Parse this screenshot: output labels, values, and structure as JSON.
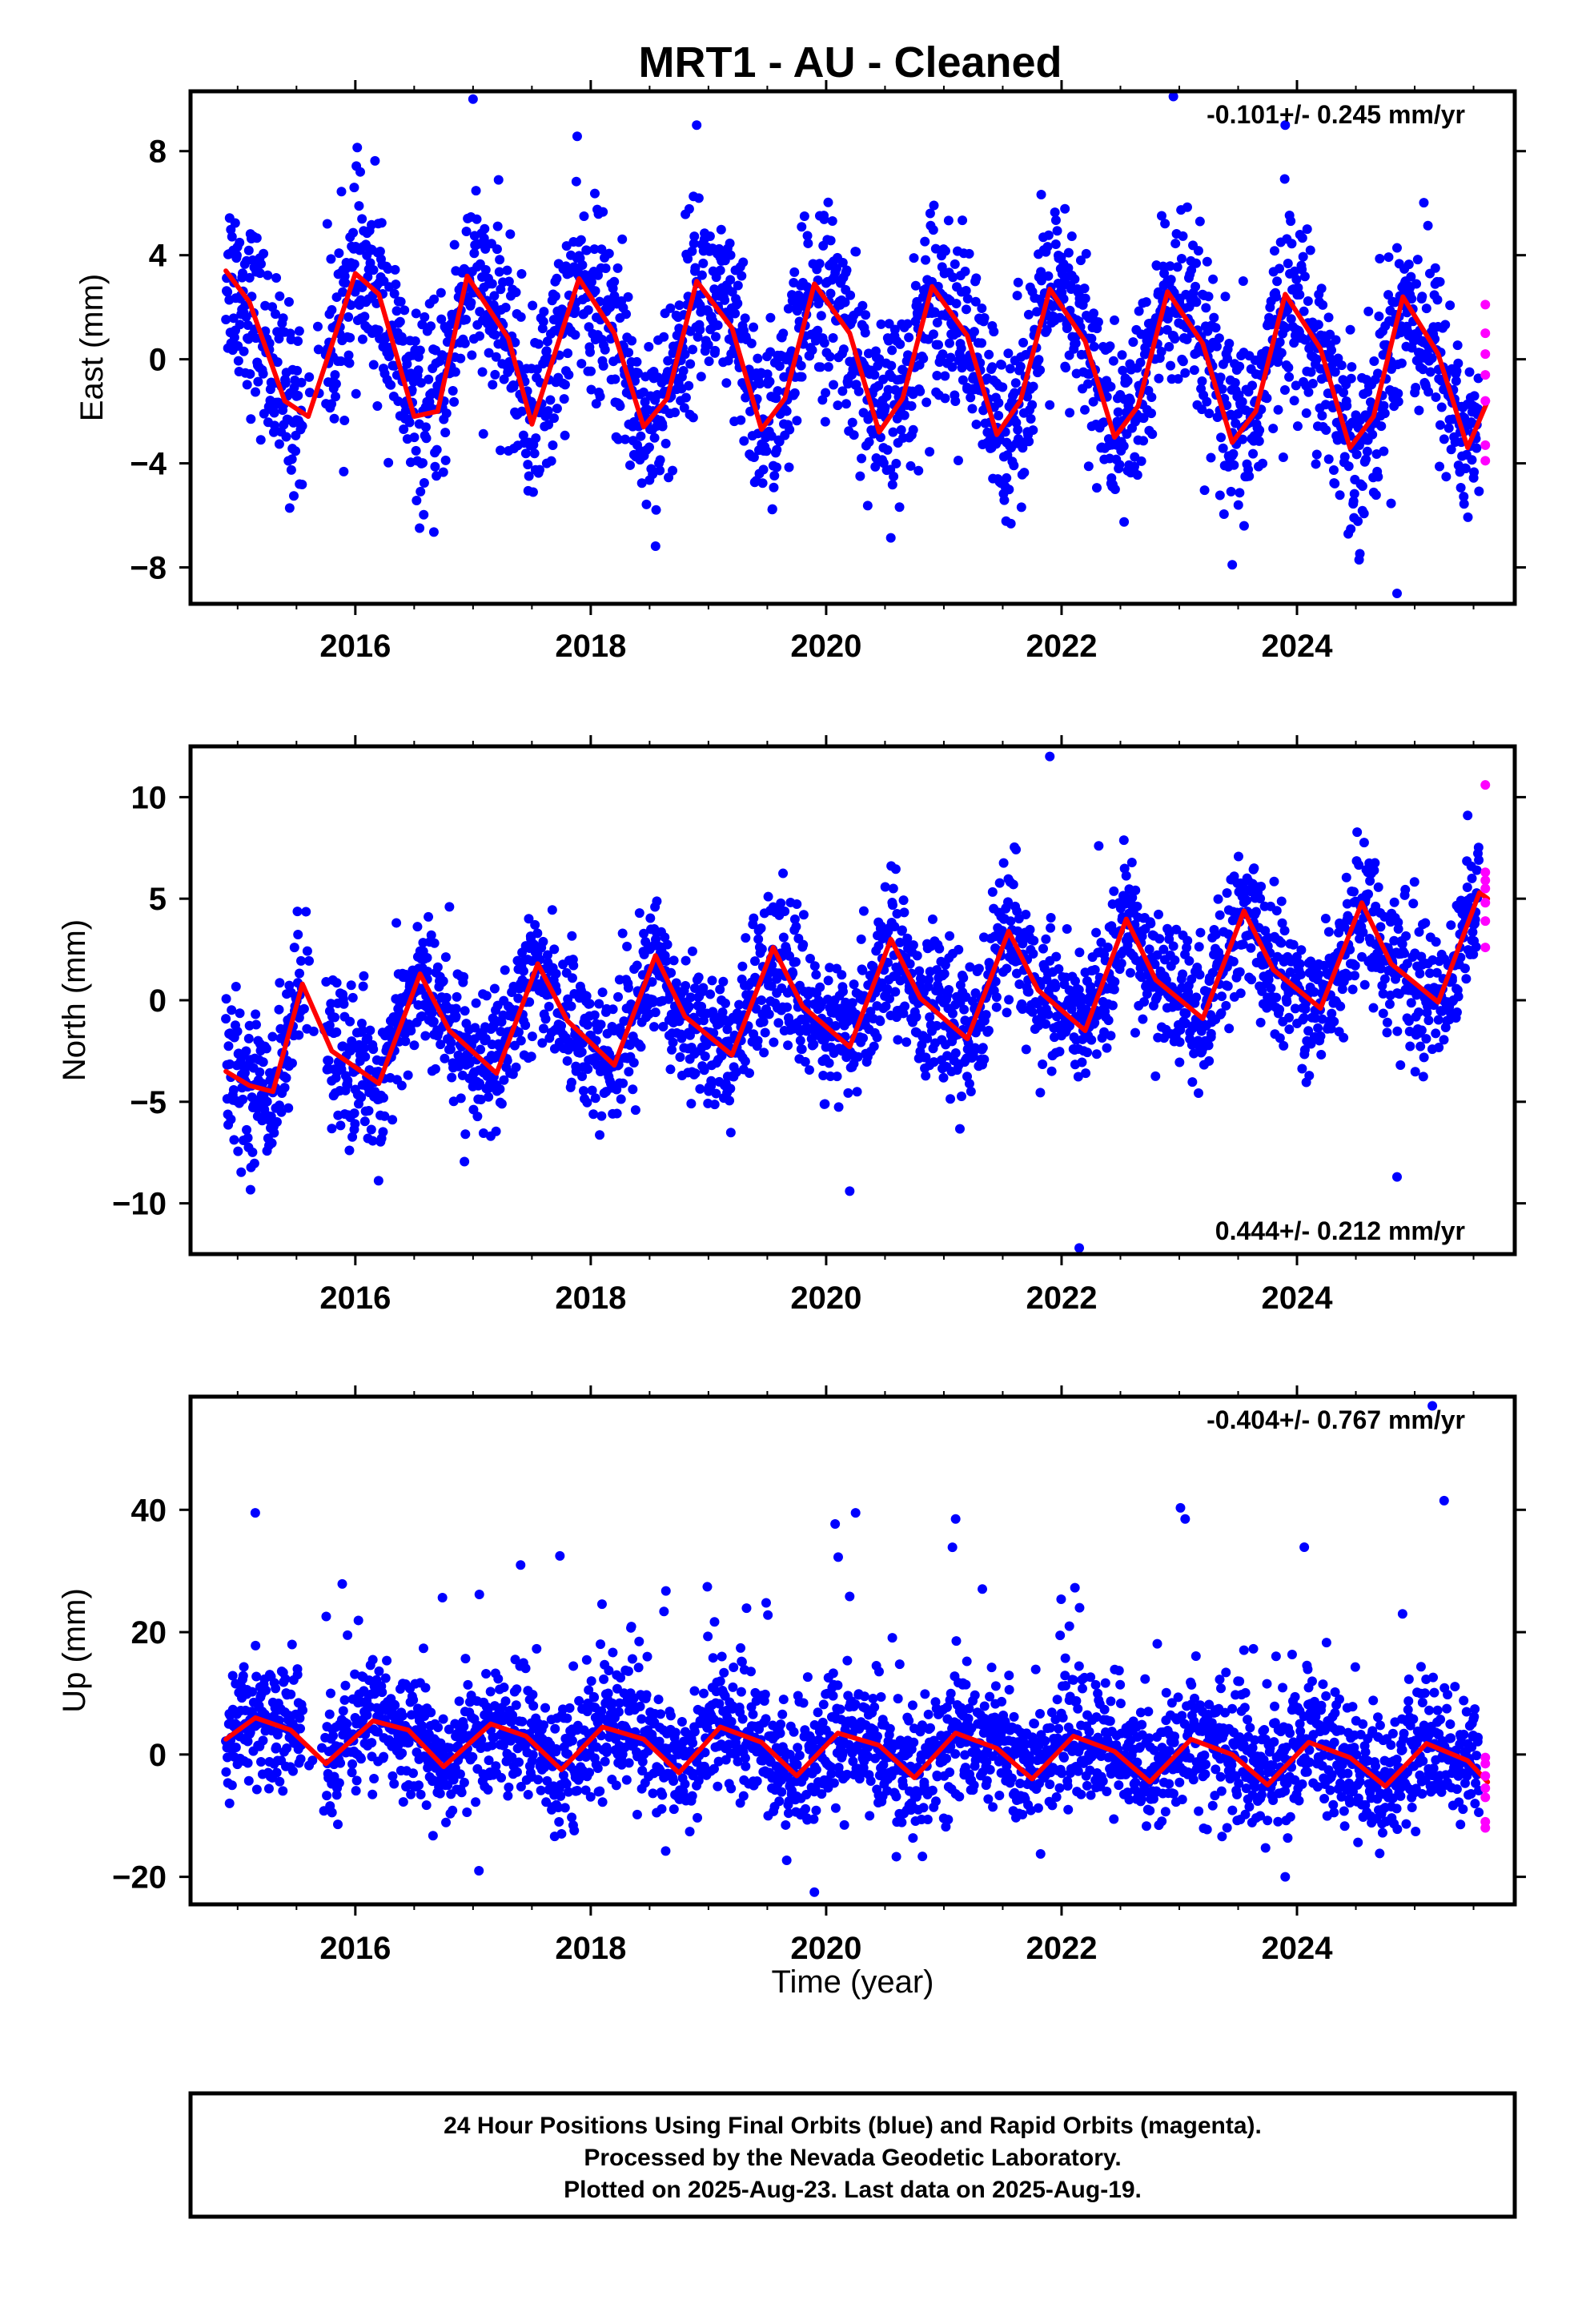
{
  "title": "MRT1  - AU - Cleaned",
  "xlabel": "Time (year)",
  "footer": [
    "24 Hour Positions Using Final Orbits (blue) and Rapid Orbits (magenta).",
    "Processed by the Nevada Geodetic Laboratory.",
    "Plotted on 2025-Aug-23. Last data on 2025-Aug-19."
  ],
  "colors": {
    "final": "#0000ff",
    "rapid": "#ff00ff",
    "model": "#ff0000"
  },
  "chart_data": [
    {
      "type": "scatter",
      "ylabel": "East (mm)",
      "rate_label": "-0.101+/- 0.245 mm/yr",
      "xlim": [
        2014.6,
        2025.85
      ],
      "ylim": [
        -9.4,
        10.3
      ],
      "yticks": [
        -8,
        -4,
        0,
        4,
        8
      ],
      "xticks": [
        2016,
        2018,
        2020,
        2022,
        2024
      ],
      "fit_line": {
        "name": "",
        "x": [
          2014.9,
          2015.1,
          2015.4,
          2015.6,
          2016.0,
          2016.2,
          2016.5,
          2016.7,
          2016.95,
          2017.3,
          2017.5,
          2017.9,
          2018.2,
          2018.45,
          2018.65,
          2018.9,
          2019.2,
          2019.45,
          2019.65,
          2019.9,
          2020.2,
          2020.45,
          2020.65,
          2020.9,
          2021.2,
          2021.45,
          2021.65,
          2021.9,
          2022.2,
          2022.45,
          2022.65,
          2022.9,
          2023.2,
          2023.45,
          2023.65,
          2023.9,
          2024.2,
          2024.45,
          2024.65,
          2024.9,
          2025.2,
          2025.45,
          2025.62
        ],
        "y": [
          3.4,
          2.2,
          -1.6,
          -2.2,
          3.3,
          2.5,
          -2.2,
          -2.0,
          3.2,
          0.8,
          -2.5,
          3.1,
          1.0,
          -2.6,
          -1.5,
          3.0,
          1.2,
          -2.7,
          -1.5,
          2.9,
          1.0,
          -2.8,
          -1.5,
          2.8,
          0.9,
          -2.9,
          -1.6,
          2.7,
          0.7,
          -3.0,
          -1.8,
          2.6,
          0.6,
          -3.2,
          -2.0,
          2.5,
          0.4,
          -3.4,
          -2.2,
          2.4,
          0.2,
          -3.4,
          -1.6
        ]
      },
      "scatter_trend": {
        "x": [
          2014.9,
          2025.6
        ],
        "y": [
          0,
          0
        ]
      },
      "scatter_seasonal_amp": 3.0,
      "scatter_noise": 1.8,
      "outliers": [
        {
          "x": 2017.0,
          "y": 10.0
        },
        {
          "x": 2018.9,
          "y": 9.0
        },
        {
          "x": 2023.9,
          "y": 9.0
        },
        {
          "x": 2023.45,
          "y": -7.9
        },
        {
          "x": 2024.85,
          "y": -9.0
        },
        {
          "x": 2022.95,
          "y": 10.1
        }
      ],
      "rapid_points": {
        "x": [
          2025.6,
          2025.6,
          2025.6,
          2025.6,
          2025.6,
          2025.6,
          2025.6
        ],
        "y": [
          2.1,
          1.0,
          0.2,
          -0.6,
          -1.6,
          -3.3,
          -3.9
        ]
      }
    },
    {
      "type": "scatter",
      "ylabel": "North (mm)",
      "rate_label": "0.444+/- 0.212 mm/yr",
      "xlim": [
        2014.6,
        2025.85
      ],
      "ylim": [
        -12.5,
        12.5
      ],
      "yticks": [
        -10,
        -5,
        0,
        5,
        10
      ],
      "xticks": [
        2016,
        2018,
        2020,
        2022,
        2024
      ],
      "fit_line": {
        "name": "",
        "x": [
          2014.9,
          2015.1,
          2015.3,
          2015.55,
          2015.8,
          2016.2,
          2016.55,
          2016.8,
          2017.2,
          2017.55,
          2017.8,
          2018.2,
          2018.55,
          2018.8,
          2019.2,
          2019.55,
          2019.8,
          2020.2,
          2020.55,
          2020.8,
          2021.2,
          2021.55,
          2021.8,
          2022.2,
          2022.55,
          2022.8,
          2023.2,
          2023.55,
          2023.8,
          2024.2,
          2024.55,
          2024.8,
          2025.2,
          2025.55,
          2025.62
        ],
        "y": [
          -3.5,
          -4.2,
          -4.5,
          0.8,
          -2.5,
          -4.1,
          1.3,
          -1.5,
          -3.6,
          1.8,
          -1.0,
          -3.2,
          2.2,
          -0.8,
          -2.7,
          2.6,
          -0.3,
          -2.3,
          3.0,
          0.1,
          -1.9,
          3.4,
          0.5,
          -1.5,
          4.0,
          1.0,
          -0.9,
          4.4,
          1.5,
          -0.4,
          4.8,
          1.8,
          -0.1,
          5.3,
          5.0
        ]
      },
      "scatter_trend": {
        "x": [
          2014.9,
          2025.6
        ],
        "y": [
          -3.8,
          2.0
        ]
      },
      "scatter_seasonal_amp": 2.5,
      "scatter_noise": 1.7,
      "outliers": [
        {
          "x": 2021.9,
          "y": 12.0
        },
        {
          "x": 2022.15,
          "y": -12.2
        },
        {
          "x": 2020.2,
          "y": -9.4
        },
        {
          "x": 2024.85,
          "y": -8.7
        },
        {
          "x": 2025.45,
          "y": 9.1
        }
      ],
      "rapid_points": {
        "x": [
          2025.6,
          2025.6,
          2025.6,
          2025.6,
          2025.6,
          2025.6,
          2025.6
        ],
        "y": [
          10.6,
          6.3,
          5.9,
          5.5,
          4.8,
          3.9,
          2.6
        ]
      }
    },
    {
      "type": "scatter",
      "ylabel": "Up (mm)",
      "rate_label": "-0.404+/- 0.767 mm/yr",
      "xlim": [
        2014.6,
        2025.85
      ],
      "ylim": [
        -24.5,
        58.5
      ],
      "yticks": [
        -20,
        0,
        20,
        40
      ],
      "xticks": [
        2016,
        2018,
        2020,
        2022,
        2024
      ],
      "fit_line": {
        "name": "",
        "x": [
          2014.9,
          2015.15,
          2015.45,
          2015.75,
          2016.15,
          2016.45,
          2016.75,
          2017.15,
          2017.45,
          2017.75,
          2018.1,
          2018.45,
          2018.75,
          2019.1,
          2019.45,
          2019.75,
          2020.1,
          2020.45,
          2020.75,
          2021.1,
          2021.45,
          2021.75,
          2022.1,
          2022.45,
          2022.75,
          2023.1,
          2023.45,
          2023.75,
          2024.1,
          2024.45,
          2024.75,
          2025.1,
          2025.45,
          2025.62
        ],
        "y": [
          2.5,
          6.0,
          4.0,
          -1.5,
          5.5,
          4.0,
          -2.0,
          5.0,
          3.0,
          -2.5,
          4.5,
          2.5,
          -3.0,
          4.5,
          2.0,
          -3.5,
          3.5,
          1.5,
          -3.8,
          3.5,
          1.0,
          -4.0,
          3.0,
          0.5,
          -4.5,
          2.5,
          0.0,
          -5.0,
          2.0,
          -0.5,
          -5.2,
          1.8,
          -1.0,
          -4.5
        ]
      },
      "scatter_trend": {
        "x": [
          2014.9,
          2025.6
        ],
        "y": [
          2.5,
          -2.0
        ]
      },
      "scatter_seasonal_amp": 3.5,
      "scatter_noise": 5.0,
      "outliers": [
        {
          "x": 2015.15,
          "y": 39.5
        },
        {
          "x": 2020.25,
          "y": 39.5
        },
        {
          "x": 2021.1,
          "y": 38.5
        },
        {
          "x": 2023.05,
          "y": 38.5
        },
        {
          "x": 2025.25,
          "y": 41.5
        },
        {
          "x": 2025.15,
          "y": 57.0
        },
        {
          "x": 2019.9,
          "y": -22.5
        },
        {
          "x": 2017.05,
          "y": -19.0
        },
        {
          "x": 2023.9,
          "y": -20.0
        }
      ],
      "rapid_points": {
        "x": [
          2025.6,
          2025.6,
          2025.6,
          2025.6,
          2025.6,
          2025.6,
          2025.6
        ],
        "y": [
          -0.5,
          -1.5,
          -3.5,
          -5.5,
          -7.0,
          -11.0,
          -12.0
        ]
      }
    }
  ]
}
